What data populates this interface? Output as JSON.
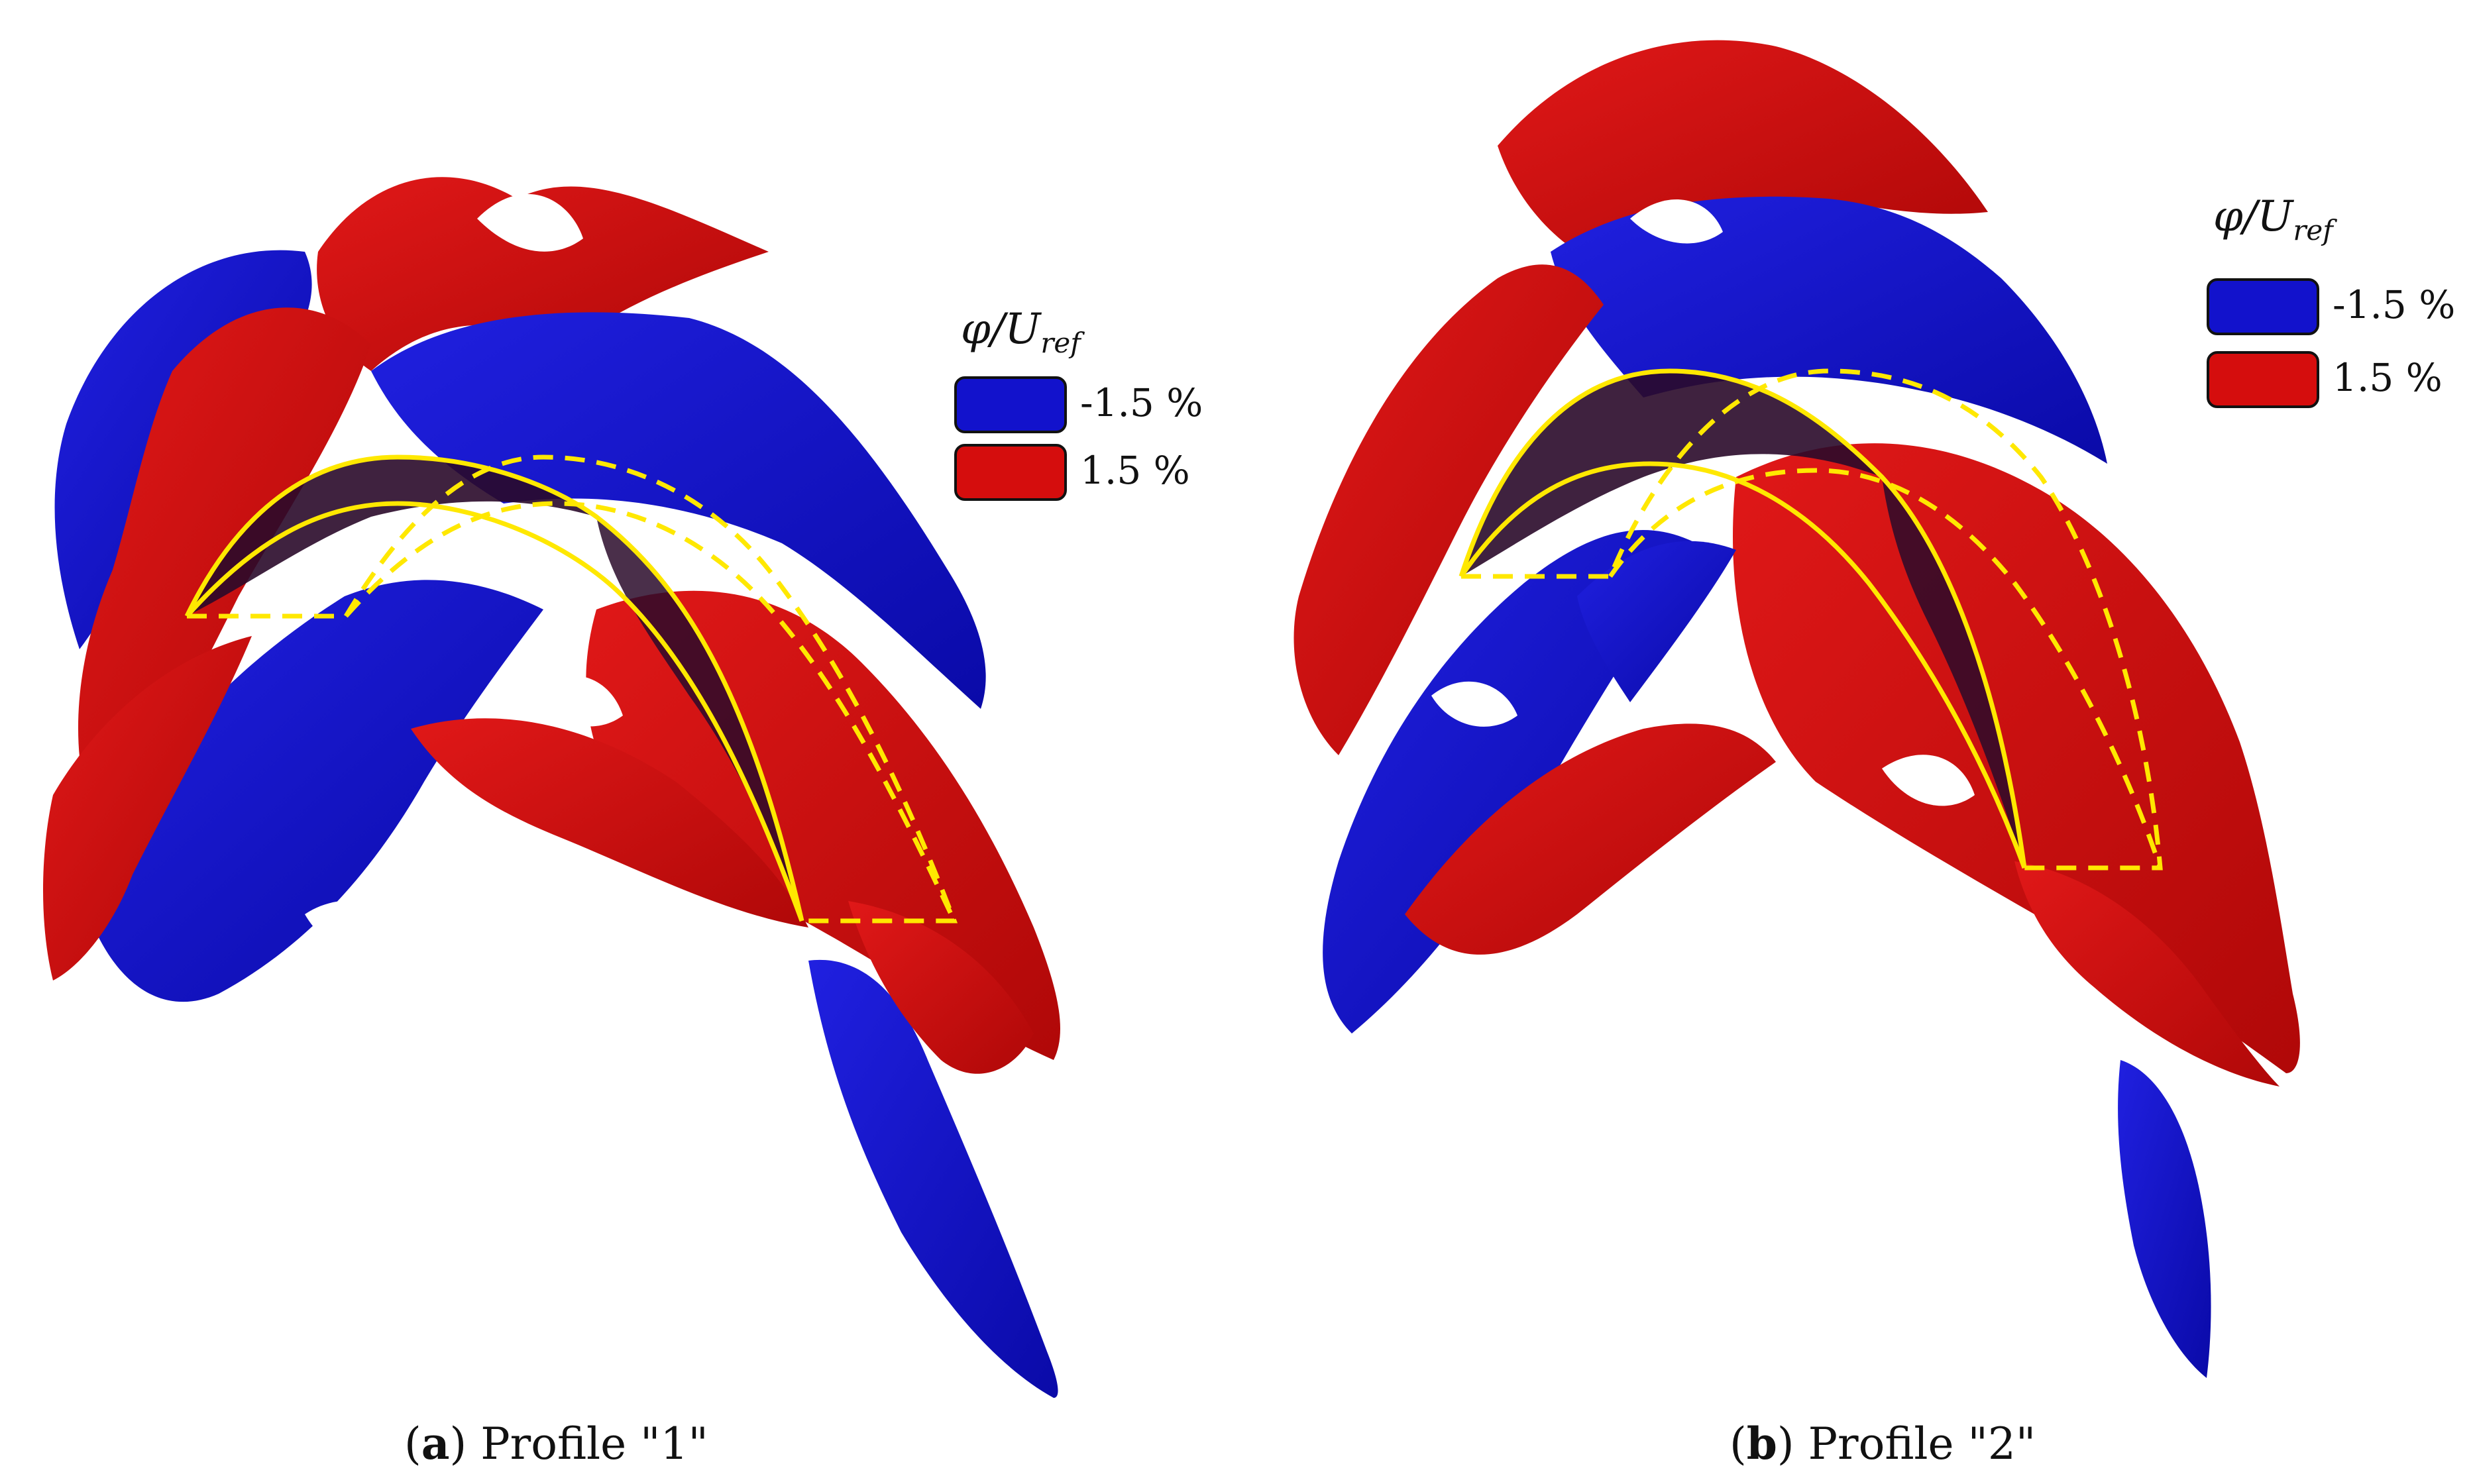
{
  "colors": {
    "negative": "#1212cc",
    "positive": "#d50d0d",
    "outline": "#ffe800",
    "blade": "#2a0a2a"
  },
  "legend": {
    "title_symbol": "φ/U",
    "title_sub": "ref",
    "items": [
      {
        "label": "-1.5 %",
        "color": "#1212cc"
      },
      {
        "label": "1.5 %",
        "color": "#d50d0d"
      }
    ]
  },
  "panels": [
    {
      "caption_letter": "a",
      "caption_text": " Profile \"1\""
    },
    {
      "caption_letter": "b",
      "caption_text": " Profile \"2\""
    }
  ]
}
